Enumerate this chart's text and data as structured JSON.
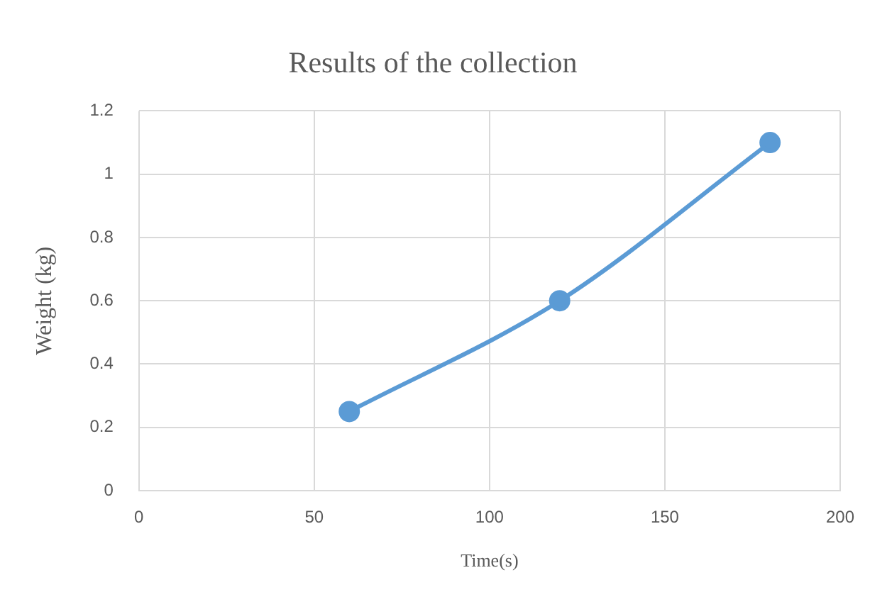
{
  "chart_data": {
    "type": "line",
    "title": "Results of the collection",
    "xlabel": "Time(s)",
    "ylabel": "Weight (kg)",
    "x": [
      60,
      120,
      180
    ],
    "series": [
      {
        "color": "#5b9bd5",
        "values": [
          0.25,
          0.6,
          1.1
        ]
      }
    ],
    "xlim": [
      0,
      200
    ],
    "xticks": [
      0,
      50,
      100,
      150,
      200
    ],
    "ylim": [
      0,
      1.2
    ],
    "yticks": [
      0,
      0.2,
      0.4,
      0.6,
      0.8,
      1,
      1.2
    ],
    "grid": true,
    "legend": false,
    "marker": "circle",
    "line_style": "solid"
  }
}
